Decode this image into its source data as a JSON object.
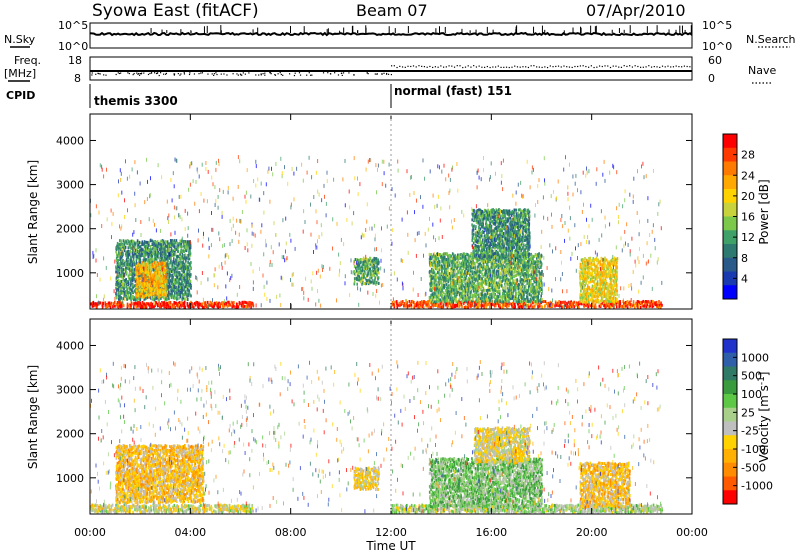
{
  "header": {
    "station": "Syowa East (fitACF)",
    "beam": "Beam 07",
    "date": "07/Apr/2010"
  },
  "top_panels": {
    "nsky_label": "N.Sky",
    "nsky_ticks": [
      "10^5",
      "10^0"
    ],
    "nsearch_label": "N.Search",
    "nsearch_ticks": [
      "10^5",
      "10^0"
    ],
    "freq_label": "Freq.",
    "freq_unit": "[MHz]",
    "freq_ticks": [
      "18",
      "8"
    ],
    "nave_label": "Nave",
    "nave_ticks": [
      "60",
      "0"
    ],
    "cpid_label": "CPID",
    "cpid_modes": [
      {
        "name": "themis 3300",
        "start_hour": 0
      },
      {
        "name": "normal (fast) 151",
        "start_hour": 12
      }
    ]
  },
  "panels": [
    {
      "id": "power",
      "ylabel": "Slant Range [km]",
      "colorbar_label": "Power [dB]",
      "colorbar_ticks": [
        "28",
        "24",
        "20",
        "16",
        "12",
        "8",
        "4"
      ],
      "colors": [
        "#ff0000",
        "#ff3a00",
        "#ff7a00",
        "#ffa800",
        "#ffd200",
        "#c8d23c",
        "#7cc84a",
        "#3fa068",
        "#2f7a70",
        "#2a5a8a",
        "#1a3ab0",
        "#0000ff"
      ]
    },
    {
      "id": "velocity",
      "ylabel": "Slant Range [km]",
      "colorbar_label": "Velocity [m s",
      "colorbar_label_sup": "-1",
      "colorbar_label_end": "]",
      "colorbar_ticks": [
        "1000",
        "500",
        "100",
        "25",
        "-25",
        "-100",
        "-500",
        "-1000"
      ],
      "colors": [
        "#2233cc",
        "#2f5fa8",
        "#2e7a66",
        "#3a9a3e",
        "#5cc846",
        "#a8d08a",
        "#bfbfbf",
        "#ffd200",
        "#ffb000",
        "#ff8c00",
        "#ff5a00",
        "#ff0000"
      ]
    }
  ],
  "yticks": [
    "4000",
    "3000",
    "2000",
    "1000"
  ],
  "xticks": [
    "00:00",
    "04:00",
    "08:00",
    "12:00",
    "16:00",
    "20:00",
    "00:00"
  ],
  "xlabel": "Time UT",
  "chart_data": [
    {
      "type": "heatmap",
      "title": "Syowa East (fitACF) Beam 07 07/Apr/2010",
      "xlabel": "Time UT",
      "ylabel": "Slant Range [km]",
      "xlim": [
        0,
        24
      ],
      "ylim": [
        180,
        4600
      ],
      "zlabel": "Power [dB]",
      "zlim": [
        0,
        30
      ],
      "regions": [
        {
          "x": [
            0.0,
            6.5
          ],
          "y": [
            180,
            300
          ],
          "z": 28
        },
        {
          "x": [
            1.0,
            4.0
          ],
          "y": [
            350,
            1700
          ],
          "z": 10
        },
        {
          "x": [
            1.8,
            3.0
          ],
          "y": [
            400,
            1200
          ],
          "z": 20
        },
        {
          "x": [
            10.5,
            11.5
          ],
          "y": [
            700,
            1300
          ],
          "z": 12
        },
        {
          "x": [
            12.0,
            22.8
          ],
          "y": [
            180,
            320
          ],
          "z": 26
        },
        {
          "x": [
            13.5,
            18.0
          ],
          "y": [
            300,
            1400
          ],
          "z": 12
        },
        {
          "x": [
            15.2,
            17.5
          ],
          "y": [
            1300,
            2400
          ],
          "z": 10
        },
        {
          "x": [
            19.5,
            21.0
          ],
          "y": [
            300,
            1300
          ],
          "z": 18
        }
      ]
    },
    {
      "type": "heatmap",
      "title": "Syowa East (fitACF) Beam 07 07/Apr/2010",
      "xlabel": "Time UT",
      "ylabel": "Slant Range [km]",
      "xlim": [
        0,
        24
      ],
      "ylim": [
        180,
        4600
      ],
      "zlabel": "Velocity [m s-1]",
      "zlim": [
        -1000,
        1000
      ],
      "regions": [
        {
          "x": [
            0.0,
            6.5
          ],
          "y": [
            180,
            350
          ],
          "z": -100
        },
        {
          "x": [
            1.0,
            4.5
          ],
          "y": [
            400,
            1700
          ],
          "z": -300
        },
        {
          "x": [
            10.5,
            11.5
          ],
          "y": [
            700,
            1200
          ],
          "z": -200
        },
        {
          "x": [
            12.0,
            22.8
          ],
          "y": [
            180,
            350
          ],
          "z": 50
        },
        {
          "x": [
            13.5,
            18.0
          ],
          "y": [
            300,
            1400
          ],
          "z": 200
        },
        {
          "x": [
            15.3,
            17.5
          ],
          "y": [
            1300,
            2100
          ],
          "z": -150
        },
        {
          "x": [
            19.5,
            21.5
          ],
          "y": [
            300,
            1300
          ],
          "z": -300
        }
      ]
    }
  ]
}
